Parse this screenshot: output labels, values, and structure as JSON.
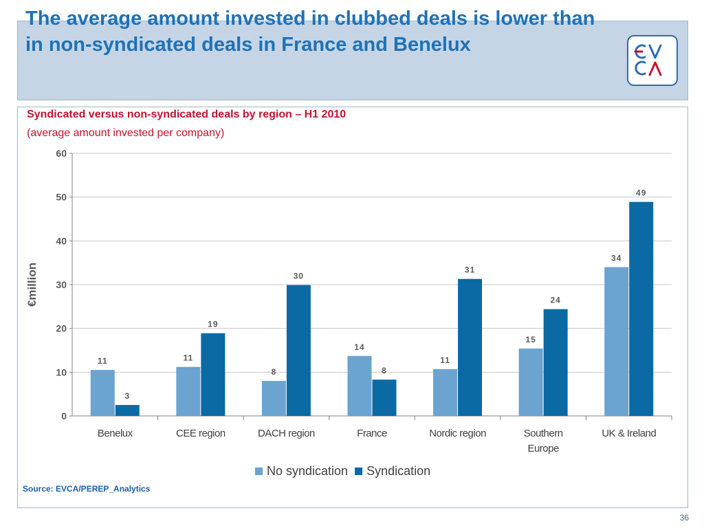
{
  "slide": {
    "title": "The average amount invested in clubbed deals is lower than in non-syndicated deals in France and Benelux",
    "page_number": "36",
    "source": "Source: EVCA/PEREP_Analytics"
  },
  "logo": {
    "top": "EV",
    "bottom": "CΛ",
    "color": "#2a6db5",
    "accent": "#c8102e"
  },
  "colors": {
    "header_band": "#c5d5e6",
    "title": "#1e72b8",
    "chart_title": "#c8102e",
    "no_syndication": "#6ba3d1",
    "syndication": "#0b6aa4"
  },
  "chart_data": {
    "type": "bar",
    "title": "Syndicated versus non-syndicated deals by region – H1 2010",
    "subtitle": "(average amount invested per company)",
    "ylabel": "€million",
    "xlabel": "",
    "ylim": [
      0,
      60
    ],
    "yticks": [
      0,
      10,
      20,
      30,
      40,
      50,
      60
    ],
    "grid": true,
    "legend_position": "bottom",
    "categories": [
      [
        "Benelux"
      ],
      [
        "CEE region"
      ],
      [
        "DACH region"
      ],
      [
        "France"
      ],
      [
        "Nordic region"
      ],
      [
        "Southern",
        "Europe"
      ],
      [
        "UK & Ireland"
      ]
    ],
    "series": [
      {
        "name": "No syndication",
        "color": "#6ba3d1",
        "values": [
          10.5,
          11.2,
          8.0,
          13.7,
          10.7,
          15.4,
          34.0
        ],
        "labels": [
          "11",
          "11",
          "8",
          "14",
          "11",
          "15",
          "34"
        ]
      },
      {
        "name": "Syndication",
        "color": "#0b6aa4",
        "values": [
          2.5,
          18.9,
          29.9,
          8.3,
          31.3,
          24.4,
          48.9
        ],
        "labels": [
          "3",
          "19",
          "30",
          "8",
          "31",
          "24",
          "49"
        ]
      }
    ]
  }
}
